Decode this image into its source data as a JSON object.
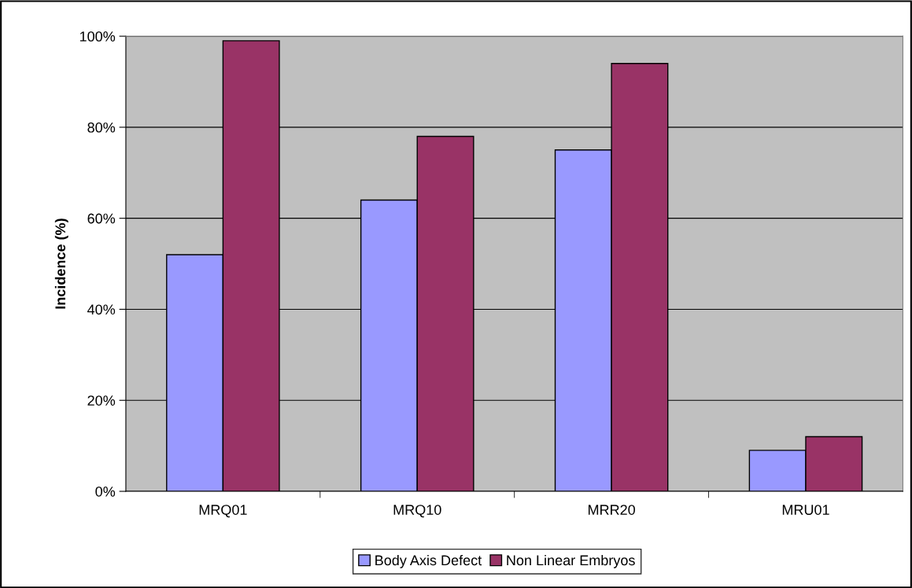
{
  "chart_data": {
    "type": "bar",
    "ylabel": "Incidence (%)",
    "categories": [
      "MRQ01",
      "MRQ10",
      "MRR20",
      "MRU01"
    ],
    "series": [
      {
        "name": "Body Axis Defect",
        "color": "#9999ff",
        "values": [
          52,
          64,
          75,
          9
        ]
      },
      {
        "name": "Non Linear Embryos",
        "color": "#993366",
        "values": [
          99,
          78,
          94,
          12
        ]
      }
    ],
    "ylim": [
      0,
      100
    ],
    "yticks": [
      {
        "value": 0,
        "label": "0%"
      },
      {
        "value": 20,
        "label": "20%"
      },
      {
        "value": 40,
        "label": "40%"
      },
      {
        "value": 60,
        "label": "60%"
      },
      {
        "value": 80,
        "label": "80%"
      },
      {
        "value": 100,
        "label": "100%"
      }
    ],
    "grid": "y",
    "legend": "bottom"
  }
}
